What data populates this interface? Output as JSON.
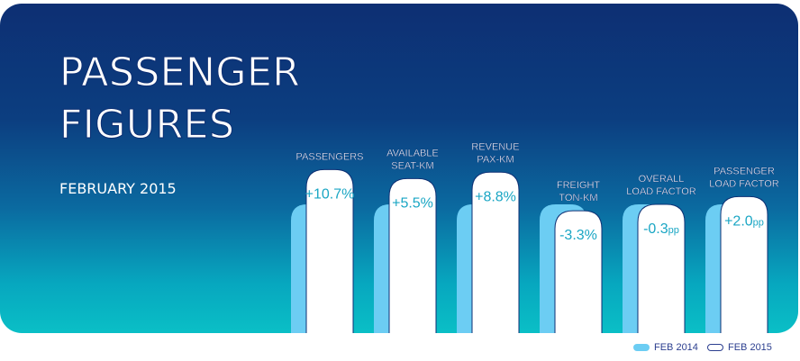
{
  "title": "PASSENGER FIGURES",
  "subtitle": "FEBRUARY 2015",
  "colors": {
    "background_top": "#0d2f73",
    "background_bottom": "#0abfc6",
    "feb_2014_bar": "#6ccdf3",
    "feb_2015_bar": "#ffffff",
    "value_text": "#1aa6c4",
    "legend_text": "#2b3e8f"
  },
  "chart_data": {
    "type": "bar",
    "categories": [
      {
        "label_lines": [
          "PASSENGERS"
        ],
        "value": "+10.7%"
      },
      {
        "label_lines": [
          "AVAILABLE",
          "SEAT-KM"
        ],
        "value": "+5.5%"
      },
      {
        "label_lines": [
          "REVENUE",
          "PAX-KM"
        ],
        "value": "+8.8%"
      },
      {
        "label_lines": [
          "FREIGHT",
          "TON-KM"
        ],
        "value": "-3.3%"
      },
      {
        "label_lines": [
          "OVERALL",
          "LOAD FACTOR"
        ],
        "value": "-0.3pp"
      },
      {
        "label_lines": [
          "PASSENGER",
          "LOAD FACTOR"
        ],
        "value": "+2.0pp"
      }
    ],
    "series": [
      {
        "name": "FEB 2014",
        "relative_values": [
          1,
          1,
          1,
          1,
          1,
          1
        ]
      },
      {
        "name": "FEB 2015",
        "relative_values": [
          1.27,
          1.2,
          1.25,
          0.95,
          1.0,
          1.06
        ]
      }
    ],
    "legend": {
      "position": "bottom-right",
      "entries": [
        "FEB 2014",
        "FEB 2015"
      ]
    },
    "grid": false
  }
}
